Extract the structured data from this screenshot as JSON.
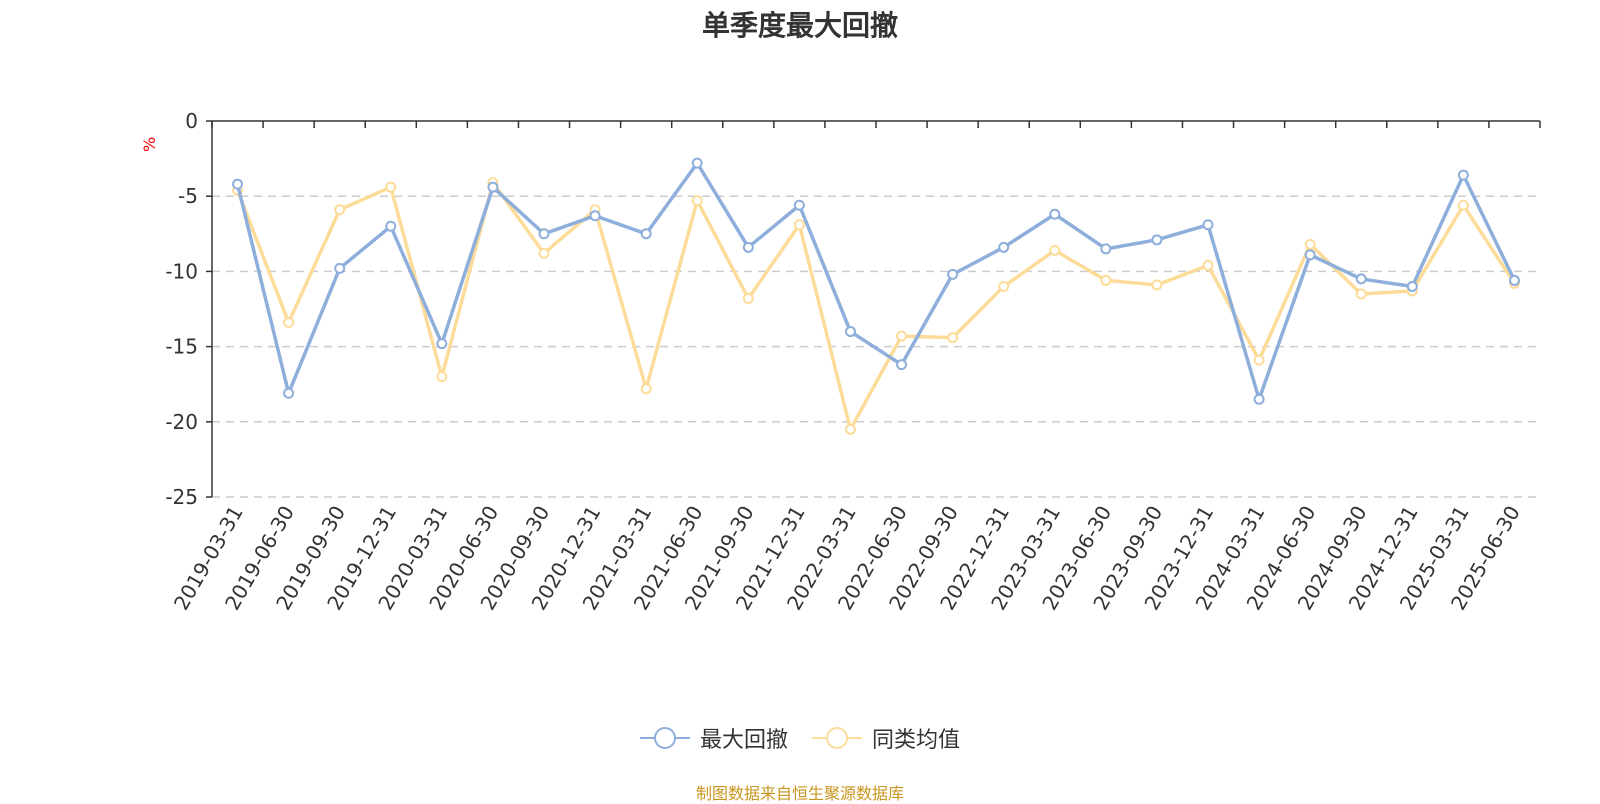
{
  "title": "单季度最大回撤",
  "unit": "%",
  "source_note": "制图数据来自恒生聚源数据库",
  "colors": {
    "series_1": "#8eaedb",
    "series_2": "#fddc9a",
    "grid": "#cccccc",
    "axis": "#333333"
  },
  "legend": [
    {
      "label": "最大回撤",
      "color": "#8eaedb"
    },
    {
      "label": "同类均值",
      "color": "#fddc9a"
    }
  ],
  "chart_data": {
    "type": "line",
    "title": "单季度最大回撤",
    "ylabel": "%",
    "ylim": [
      -25,
      0
    ],
    "yticks": [
      0,
      -5,
      -10,
      -15,
      -20,
      -25
    ],
    "grid": "horizontal dashed",
    "legend_position": "bottom-center",
    "categories": [
      "2019-03-31",
      "2019-06-30",
      "2019-09-30",
      "2019-12-31",
      "2020-03-31",
      "2020-06-30",
      "2020-09-30",
      "2020-12-31",
      "2021-03-31",
      "2021-06-30",
      "2021-09-30",
      "2021-12-31",
      "2022-03-31",
      "2022-06-30",
      "2022-09-30",
      "2022-12-31",
      "2023-03-31",
      "2023-06-30",
      "2023-09-30",
      "2023-12-31",
      "2024-03-31",
      "2024-06-30",
      "2024-09-30",
      "2024-12-31",
      "2025-03-31",
      "2025-06-30"
    ],
    "series": [
      {
        "name": "最大回撤",
        "values": [
          -4.2,
          -18.1,
          -9.8,
          -7.0,
          -14.8,
          -4.4,
          -7.5,
          -6.3,
          -7.5,
          -2.8,
          -8.4,
          -5.6,
          -14.0,
          -16.2,
          -10.2,
          -8.4,
          -6.2,
          -8.5,
          -7.9,
          -6.9,
          -18.5,
          -8.9,
          -10.5,
          -11.0,
          -3.6,
          -10.6
        ]
      },
      {
        "name": "同类均值",
        "values": [
          -4.6,
          -13.4,
          -5.9,
          -4.4,
          -17.0,
          -4.1,
          -8.8,
          -5.9,
          -17.8,
          -5.3,
          -11.8,
          -6.9,
          -20.5,
          -14.3,
          -14.4,
          -11.0,
          -8.6,
          -10.6,
          -10.9,
          -9.6,
          -15.9,
          -8.2,
          -11.5,
          -11.3,
          -5.6,
          -10.8
        ]
      }
    ]
  }
}
